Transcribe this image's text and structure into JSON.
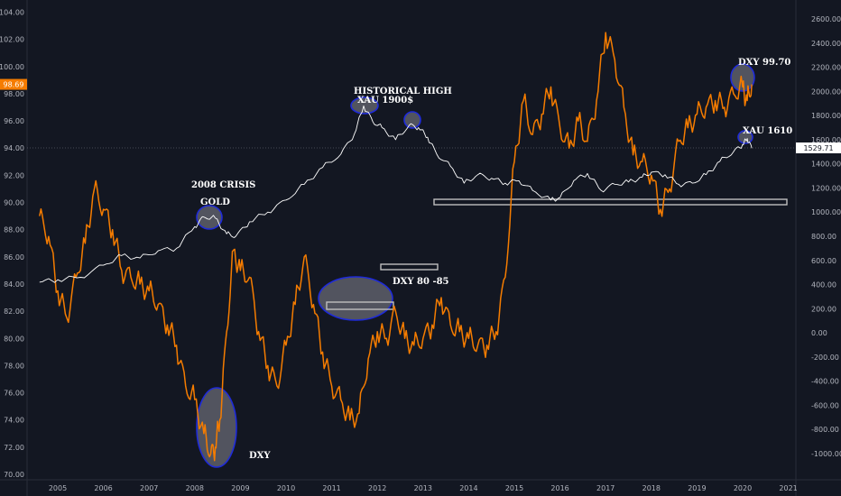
{
  "chart_data": {
    "type": "line",
    "x_ticks": [
      "2005",
      "2006",
      "2007",
      "2008",
      "2009",
      "2010",
      "2011",
      "2012",
      "2013",
      "2014",
      "2015",
      "2016",
      "2017",
      "2018",
      "2019",
      "2020",
      "2021"
    ],
    "left_axis": {
      "ticks": [
        "70.00",
        "72.00",
        "74.00",
        "76.00",
        "78.00",
        "80.00",
        "82.00",
        "84.00",
        "86.00",
        "88.00",
        "90.00",
        "92.00",
        "94.00",
        "96.00",
        "98.00",
        "100.00",
        "102.00",
        "104.00"
      ],
      "ylim": [
        70,
        104
      ],
      "current_value": "98.69",
      "current_color": "#f57c00"
    },
    "right_axis": {
      "ticks": [
        "-1000.00",
        "-800.00",
        "-600.00",
        "-400.00",
        "-200.00",
        "0.00",
        "200.00",
        "400.00",
        "600.00",
        "800.00",
        "1000.00",
        "1200.00",
        "1400.00",
        "1600.00",
        "1800.00",
        "2000.00",
        "2200.00",
        "2400.00",
        "2600.00"
      ],
      "ylim": [
        -1050,
        2750
      ],
      "current_value": "1529.71",
      "current_color": "#ffffff"
    },
    "series": [
      {
        "axis": "left",
        "color": "#f57c00",
        "x": [
          2004.6,
          2004.8,
          2005.0,
          2005.2,
          2005.4,
          2005.6,
          2005.8,
          2006.0,
          2006.2,
          2006.4,
          2006.6,
          2006.8,
          2007.0,
          2007.2,
          2007.4,
          2007.6,
          2007.8,
          2008.0,
          2008.2,
          2008.35,
          2008.45,
          2008.55,
          2008.7,
          2008.85,
          2009.0,
          2009.2,
          2009.4,
          2009.6,
          2009.8,
          2010.0,
          2010.2,
          2010.4,
          2010.6,
          2010.8,
          2011.0,
          2011.2,
          2011.4,
          2011.6,
          2011.8,
          2012.0,
          2012.2,
          2012.4,
          2012.6,
          2012.8,
          2013.0,
          2013.2,
          2013.4,
          2013.6,
          2013.8,
          2014.0,
          2014.2,
          2014.4,
          2014.6,
          2014.8,
          2015.0,
          2015.2,
          2015.4,
          2015.6,
          2015.8,
          2016.0,
          2016.2,
          2016.4,
          2016.6,
          2016.8,
          2017.0,
          2017.2,
          2017.4,
          2017.6,
          2017.8,
          2018.0,
          2018.2,
          2018.4,
          2018.6,
          2018.8,
          2019.0,
          2019.2,
          2019.4,
          2019.6,
          2019.8,
          2020.0,
          2020.1,
          2020.2
        ],
        "values": [
          89.0,
          87.5,
          83.5,
          81.5,
          84.5,
          87.0,
          91.0,
          89.5,
          88.0,
          85.0,
          84.5,
          84.0,
          83.5,
          82.5,
          81.0,
          79.5,
          76.5,
          75.5,
          73.0,
          71.5,
          72.0,
          74.0,
          80.5,
          86.5,
          85.0,
          84.5,
          80.5,
          78.0,
          76.5,
          79.5,
          82.5,
          86.0,
          82.5,
          79.0,
          76.5,
          75.5,
          74.0,
          74.5,
          78.5,
          80.5,
          80.0,
          82.0,
          80.0,
          79.5,
          80.0,
          81.0,
          83.0,
          81.0,
          80.5,
          80.0,
          79.5,
          79.5,
          80.5,
          84.5,
          93.0,
          97.5,
          95.0,
          96.5,
          98.5,
          95.5,
          94.0,
          96.0,
          94.5,
          97.5,
          102.5,
          100.5,
          97.0,
          93.5,
          93.0,
          92.0,
          89.5,
          91.0,
          94.5,
          95.5,
          96.5,
          97.0,
          97.5,
          97.0,
          98.0,
          98.5,
          97.5,
          98.69
        ]
      },
      {
        "axis": "right",
        "color": "#ffffff",
        "x": [
          2004.6,
          2005.0,
          2005.5,
          2006.0,
          2006.4,
          2006.8,
          2007.2,
          2007.6,
          2008.0,
          2008.2,
          2008.45,
          2008.7,
          2008.9,
          2009.2,
          2009.6,
          2010.0,
          2010.4,
          2010.8,
          2011.2,
          2011.5,
          2011.7,
          2011.9,
          2012.1,
          2012.4,
          2012.7,
          2012.9,
          2013.1,
          2013.3,
          2013.6,
          2013.9,
          2014.2,
          2014.5,
          2014.8,
          2015.1,
          2015.4,
          2015.8,
          2016.0,
          2016.3,
          2016.6,
          2016.9,
          2017.2,
          2017.5,
          2017.8,
          2018.0,
          2018.3,
          2018.6,
          2018.9,
          2019.2,
          2019.5,
          2019.8,
          2020.0,
          2020.1,
          2020.2
        ],
        "values": [
          420,
          440,
          460,
          560,
          640,
          620,
          680,
          700,
          880,
          960,
          950,
          820,
          800,
          920,
          1000,
          1100,
          1230,
          1370,
          1480,
          1650,
          1880,
          1750,
          1700,
          1600,
          1720,
          1700,
          1620,
          1480,
          1380,
          1240,
          1310,
          1280,
          1240,
          1260,
          1180,
          1100,
          1120,
          1260,
          1320,
          1180,
          1230,
          1250,
          1290,
          1330,
          1310,
          1230,
          1240,
          1310,
          1420,
          1500,
          1560,
          1610,
          1529.71
        ]
      }
    ],
    "annotations": [
      {
        "text": "HISTORICAL HIGH",
        "color": "#ffffff"
      },
      {
        "text": "XAU 1900$",
        "color": "#ffffff"
      },
      {
        "text": "2008 CRISIS",
        "color": "#ffffff"
      },
      {
        "text": "GOLD",
        "color": "#ffffff"
      },
      {
        "text": "DXY 80 -85",
        "color": "#ffffff"
      },
      {
        "text": "DXY",
        "color": "#ffffff"
      },
      {
        "text": "DXY 99.70",
        "color": "#ffffff"
      },
      {
        "text": "XAU 1610",
        "color": "#ffffff"
      }
    ]
  }
}
